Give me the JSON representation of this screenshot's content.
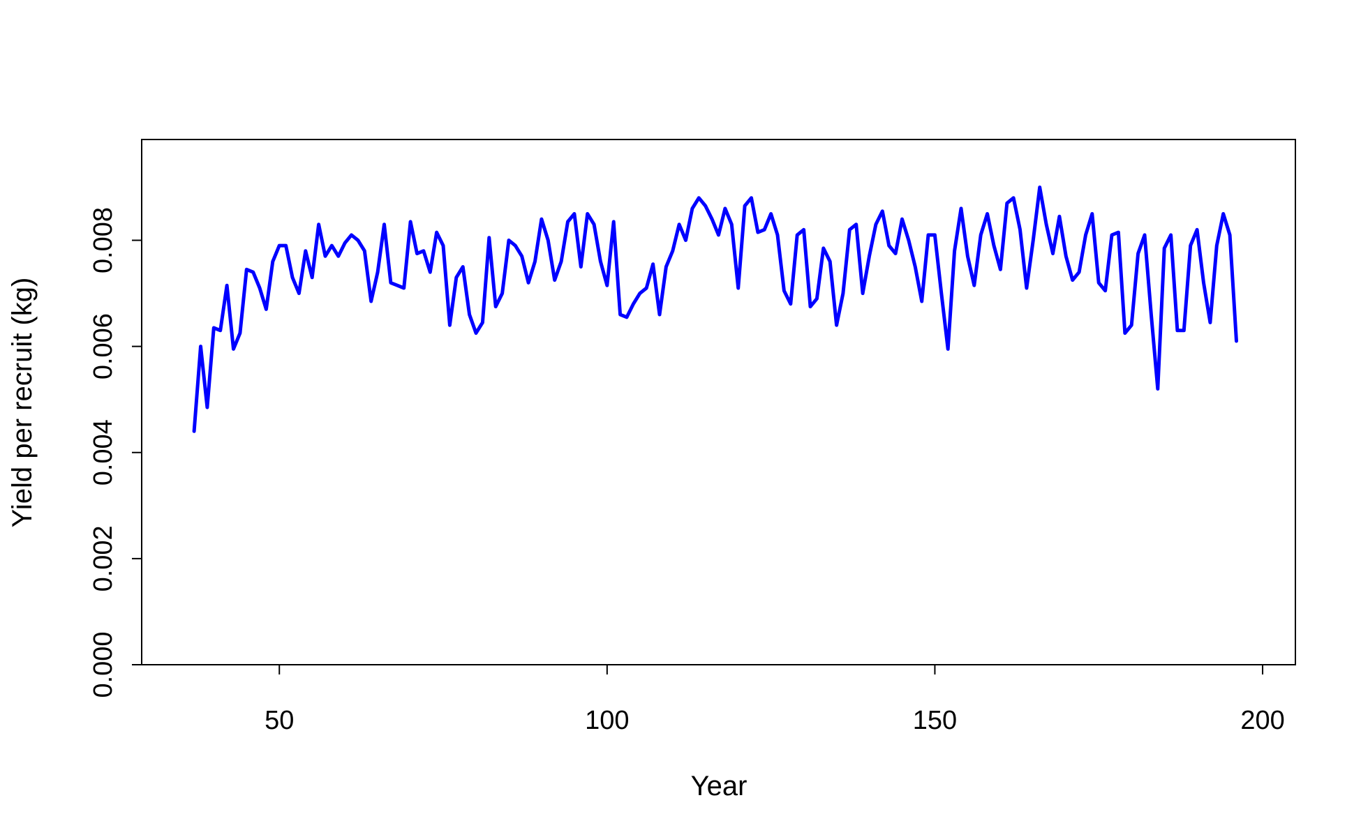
{
  "chart_data": {
    "type": "line",
    "title": "",
    "xlabel": "Year",
    "ylabel": "Yield per recruit (kg)",
    "xlim": [
      29,
      205
    ],
    "ylim": [
      0,
      0.0099
    ],
    "xticks": [
      50,
      100,
      150,
      200
    ],
    "xtick_labels": [
      "50",
      "100",
      "150",
      "200"
    ],
    "yticks": [
      0,
      0.002,
      0.004,
      0.006,
      0.008
    ],
    "ytick_labels": [
      "0.000",
      "0.002",
      "0.004",
      "0.006",
      "0.008"
    ],
    "grid": false,
    "legend": "none",
    "line_color": "#0000ff",
    "series": [
      {
        "x": [
          37,
          38,
          39,
          40,
          41,
          42,
          43,
          44,
          45,
          46,
          47,
          48,
          49,
          50,
          51,
          52,
          53,
          54,
          55,
          56,
          57,
          58,
          59,
          60,
          61,
          62,
          63,
          64,
          65,
          66,
          67,
          68,
          69,
          70,
          71,
          72,
          73,
          74,
          75,
          76,
          77,
          78,
          79,
          80,
          81,
          82,
          83,
          84,
          85,
          86,
          87,
          88,
          89,
          90,
          91,
          92,
          93,
          94,
          95,
          96,
          97,
          98,
          99,
          100,
          101,
          102,
          103,
          104,
          105,
          106,
          107,
          108,
          109,
          110,
          111,
          112,
          113,
          114,
          115,
          116,
          117,
          118,
          119,
          120,
          121,
          122,
          123,
          124,
          125,
          126,
          127,
          128,
          129,
          130,
          131,
          132,
          133,
          134,
          135,
          136,
          137,
          138,
          139,
          140,
          141,
          142,
          143,
          144,
          145,
          146,
          147,
          148,
          149,
          150,
          151,
          152,
          153,
          154,
          155,
          156,
          157,
          158,
          159,
          160,
          161,
          162,
          163,
          164,
          165,
          166,
          167,
          168,
          169,
          170,
          171,
          172,
          173,
          174,
          175,
          176,
          177,
          178,
          179,
          180,
          181,
          182,
          183,
          184,
          185,
          186,
          187,
          188,
          189,
          190,
          191,
          192,
          193,
          194,
          195,
          196
        ],
        "values": [
          0.0044,
          0.006,
          0.00485,
          0.00635,
          0.0063,
          0.00715,
          0.00595,
          0.00625,
          0.00745,
          0.0074,
          0.0071,
          0.0067,
          0.0076,
          0.0079,
          0.0079,
          0.0073,
          0.007,
          0.0078,
          0.0073,
          0.0083,
          0.0077,
          0.0079,
          0.0077,
          0.00795,
          0.0081,
          0.008,
          0.0078,
          0.00685,
          0.0074,
          0.0083,
          0.0072,
          0.00715,
          0.0071,
          0.00835,
          0.00775,
          0.0078,
          0.0074,
          0.00815,
          0.0079,
          0.0064,
          0.0073,
          0.0075,
          0.0066,
          0.00625,
          0.00645,
          0.00805,
          0.00675,
          0.007,
          0.008,
          0.0079,
          0.0077,
          0.0072,
          0.0076,
          0.0084,
          0.008,
          0.00725,
          0.0076,
          0.00835,
          0.0085,
          0.0075,
          0.0085,
          0.0083,
          0.0076,
          0.00715,
          0.00835,
          0.0066,
          0.00655,
          0.0068,
          0.007,
          0.0071,
          0.00755,
          0.0066,
          0.0075,
          0.0078,
          0.0083,
          0.008,
          0.0086,
          0.0088,
          0.00865,
          0.0084,
          0.0081,
          0.0086,
          0.0083,
          0.0071,
          0.00865,
          0.0088,
          0.00815,
          0.0082,
          0.0085,
          0.0081,
          0.00705,
          0.0068,
          0.0081,
          0.0082,
          0.00675,
          0.0069,
          0.00785,
          0.0076,
          0.0064,
          0.007,
          0.0082,
          0.0083,
          0.007,
          0.0077,
          0.0083,
          0.00855,
          0.0079,
          0.00775,
          0.0084,
          0.008,
          0.0075,
          0.00685,
          0.0081,
          0.0081,
          0.007,
          0.00595,
          0.0078,
          0.0086,
          0.0077,
          0.00715,
          0.0081,
          0.0085,
          0.0079,
          0.00745,
          0.0087,
          0.0088,
          0.0082,
          0.0071,
          0.008,
          0.009,
          0.0083,
          0.00775,
          0.00845,
          0.0077,
          0.00725,
          0.0074,
          0.0081,
          0.0085,
          0.0072,
          0.00705,
          0.0081,
          0.00815,
          0.00625,
          0.0064,
          0.00775,
          0.0081,
          0.0066,
          0.0052,
          0.00785,
          0.0081,
          0.0063,
          0.0063,
          0.0079,
          0.0082,
          0.0072,
          0.00645,
          0.0079,
          0.0085,
          0.0081,
          0.0061
        ]
      }
    ]
  }
}
